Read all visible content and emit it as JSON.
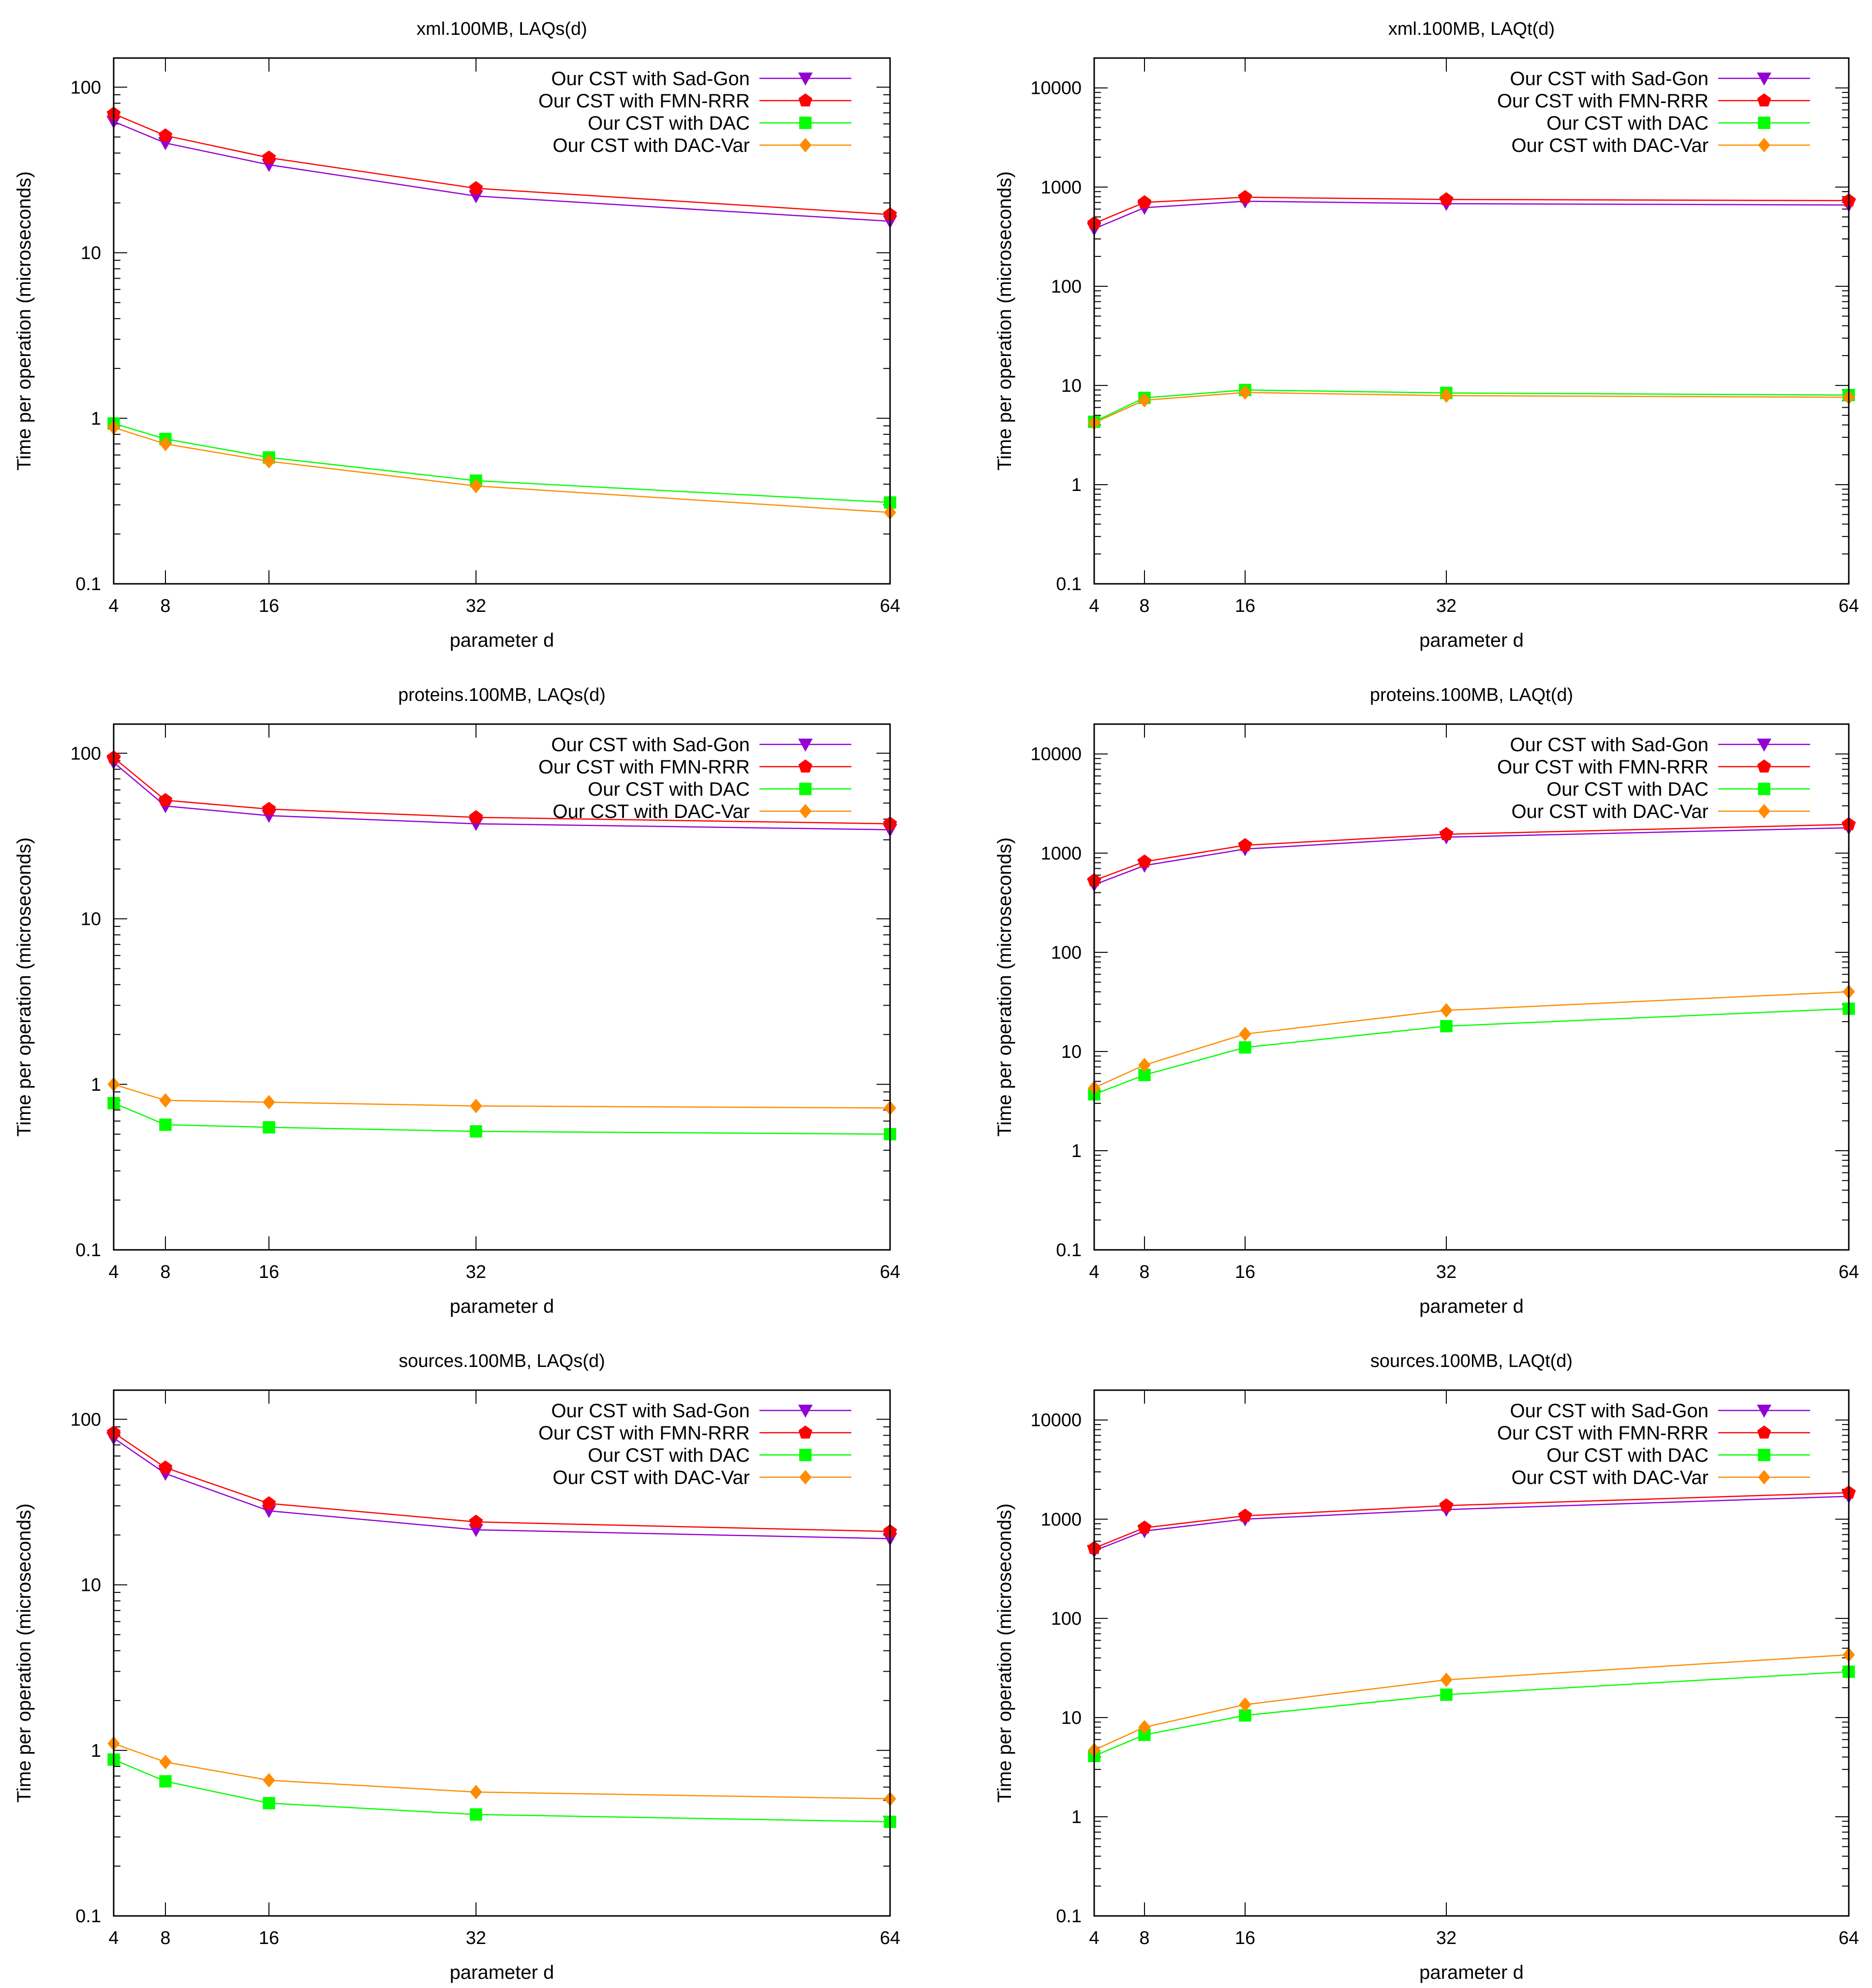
{
  "colors": {
    "sad_gon": "#9400d3",
    "fmn_rrr": "#ff0000",
    "dac": "#00ff00",
    "dac_var": "#ff8c00"
  },
  "chart_data": [
    {
      "type": "line",
      "title": "xml.100MB, LAQs(d)",
      "xlabel": "parameter d",
      "ylabel": "Time per operation (microseconds)",
      "yscale": "log",
      "ylim": [
        0.1,
        150
      ],
      "xlim": [
        4,
        64
      ],
      "xticks": [
        4,
        8,
        16,
        32,
        64
      ],
      "xtick_labels": [
        "4",
        "8",
        "16",
        "32",
        "64"
      ],
      "yticks": [
        0.1,
        1,
        10,
        100
      ],
      "ytick_labels": [
        "0.1",
        "1",
        "10",
        "100"
      ],
      "legend_position": "top-right",
      "x": [
        4,
        8,
        16,
        32,
        64
      ],
      "series": [
        {
          "name": "Our CST with Sad-Gon",
          "color": "#9400d3",
          "marker": "triangle-down",
          "values": [
            62,
            46,
            34,
            22,
            15.5
          ]
        },
        {
          "name": "Our CST with FMN-RRR",
          "color": "#ff0000",
          "marker": "pentagon",
          "values": [
            69,
            51,
            37.5,
            24.5,
            17
          ]
        },
        {
          "name": "Our CST with DAC",
          "color": "#00ff00",
          "marker": "square",
          "values": [
            0.93,
            0.75,
            0.58,
            0.42,
            0.31
          ]
        },
        {
          "name": "Our CST with DAC-Var",
          "color": "#ff8c00",
          "marker": "diamond",
          "values": [
            0.88,
            0.7,
            0.55,
            0.39,
            0.27
          ]
        }
      ]
    },
    {
      "type": "line",
      "title": "xml.100MB, LAQt(d)",
      "xlabel": "parameter d",
      "ylabel": "Time per operation (microseconds)",
      "yscale": "log",
      "ylim": [
        0.1,
        20000
      ],
      "xlim": [
        4,
        64
      ],
      "xticks": [
        4,
        8,
        16,
        32,
        64
      ],
      "xtick_labels": [
        "4",
        "8",
        "16",
        "32",
        "64"
      ],
      "yticks": [
        0.1,
        1,
        10,
        100,
        1000,
        10000
      ],
      "ytick_labels": [
        "0.1",
        "1",
        "10",
        "100",
        "1000",
        "10000"
      ],
      "legend_position": "top-right",
      "x": [
        4,
        8,
        16,
        32,
        64
      ],
      "series": [
        {
          "name": "Our CST with Sad-Gon",
          "color": "#9400d3",
          "marker": "triangle-down",
          "values": [
            380,
            620,
            720,
            680,
            660
          ]
        },
        {
          "name": "Our CST with FMN-RRR",
          "color": "#ff0000",
          "marker": "pentagon",
          "values": [
            430,
            700,
            790,
            750,
            730
          ]
        },
        {
          "name": "Our CST with DAC",
          "color": "#00ff00",
          "marker": "square",
          "values": [
            4.3,
            7.5,
            9.0,
            8.4,
            8.0
          ]
        },
        {
          "name": "Our CST with DAC-Var",
          "color": "#ff8c00",
          "marker": "diamond",
          "values": [
            4.2,
            7.1,
            8.5,
            7.9,
            7.6
          ]
        }
      ]
    },
    {
      "type": "line",
      "title": "proteins.100MB, LAQs(d)",
      "xlabel": "parameter d",
      "ylabel": "Time per operation (microseconds)",
      "yscale": "log",
      "ylim": [
        0.1,
        150
      ],
      "xlim": [
        4,
        64
      ],
      "xticks": [
        4,
        8,
        16,
        32,
        64
      ],
      "xtick_labels": [
        "4",
        "8",
        "16",
        "32",
        "64"
      ],
      "yticks": [
        0.1,
        1,
        10,
        100
      ],
      "ytick_labels": [
        "0.1",
        "1",
        "10",
        "100"
      ],
      "legend_position": "top-right",
      "x": [
        4,
        8,
        16,
        32,
        64
      ],
      "series": [
        {
          "name": "Our CST with Sad-Gon",
          "color": "#9400d3",
          "marker": "triangle-down",
          "values": [
            88,
            48,
            42,
            37.5,
            34.5
          ]
        },
        {
          "name": "Our CST with FMN-RRR",
          "color": "#ff0000",
          "marker": "pentagon",
          "values": [
            94,
            52,
            46,
            41,
            37.5
          ]
        },
        {
          "name": "Our CST with DAC",
          "color": "#00ff00",
          "marker": "square",
          "values": [
            0.77,
            0.57,
            0.55,
            0.52,
            0.5
          ]
        },
        {
          "name": "Our CST with DAC-Var",
          "color": "#ff8c00",
          "marker": "diamond",
          "values": [
            1.0,
            0.8,
            0.78,
            0.74,
            0.72
          ]
        }
      ]
    },
    {
      "type": "line",
      "title": "proteins.100MB, LAQt(d)",
      "xlabel": "parameter d",
      "ylabel": "Time per operation (microseconds)",
      "yscale": "log",
      "ylim": [
        0.1,
        20000
      ],
      "xlim": [
        4,
        64
      ],
      "xticks": [
        4,
        8,
        16,
        32,
        64
      ],
      "xtick_labels": [
        "4",
        "8",
        "16",
        "32",
        "64"
      ],
      "yticks": [
        0.1,
        1,
        10,
        100,
        1000,
        10000
      ],
      "ytick_labels": [
        "0.1",
        "1",
        "10",
        "100",
        "1000",
        "10000"
      ],
      "legend_position": "top-right",
      "x": [
        4,
        8,
        16,
        32,
        64
      ],
      "series": [
        {
          "name": "Our CST with Sad-Gon",
          "color": "#9400d3",
          "marker": "triangle-down",
          "values": [
            480,
            750,
            1100,
            1450,
            1800
          ]
        },
        {
          "name": "Our CST with FMN-RRR",
          "color": "#ff0000",
          "marker": "pentagon",
          "values": [
            530,
            820,
            1200,
            1550,
            1950
          ]
        },
        {
          "name": "Our CST with DAC",
          "color": "#00ff00",
          "marker": "square",
          "values": [
            3.7,
            5.8,
            11,
            18,
            27
          ]
        },
        {
          "name": "Our CST with DAC-Var",
          "color": "#ff8c00",
          "marker": "diamond",
          "values": [
            4.3,
            7.3,
            15,
            26,
            40
          ]
        }
      ]
    },
    {
      "type": "line",
      "title": "sources.100MB, LAQs(d)",
      "xlabel": "parameter d",
      "ylabel": "Time per operation (microseconds)",
      "yscale": "log",
      "ylim": [
        0.1,
        150
      ],
      "xlim": [
        4,
        64
      ],
      "xticks": [
        4,
        8,
        16,
        32,
        64
      ],
      "xtick_labels": [
        "4",
        "8",
        "16",
        "32",
        "64"
      ],
      "yticks": [
        0.1,
        1,
        10,
        100
      ],
      "ytick_labels": [
        "0.1",
        "1",
        "10",
        "100"
      ],
      "legend_position": "top-right",
      "x": [
        4,
        8,
        16,
        32,
        64
      ],
      "series": [
        {
          "name": "Our CST with Sad-Gon",
          "color": "#9400d3",
          "marker": "triangle-down",
          "values": [
            77,
            47,
            28,
            21.5,
            19
          ]
        },
        {
          "name": "Our CST with FMN-RRR",
          "color": "#ff0000",
          "marker": "pentagon",
          "values": [
            83,
            51,
            31,
            24,
            21
          ]
        },
        {
          "name": "Our CST with DAC",
          "color": "#00ff00",
          "marker": "square",
          "values": [
            0.88,
            0.65,
            0.48,
            0.41,
            0.37
          ]
        },
        {
          "name": "Our CST with DAC-Var",
          "color": "#ff8c00",
          "marker": "diamond",
          "values": [
            1.1,
            0.85,
            0.66,
            0.56,
            0.51
          ]
        }
      ]
    },
    {
      "type": "line",
      "title": "sources.100MB, LAQt(d)",
      "xlabel": "parameter d",
      "ylabel": "Time per operation (microseconds)",
      "yscale": "log",
      "ylim": [
        0.1,
        20000
      ],
      "xlim": [
        4,
        64
      ],
      "xticks": [
        4,
        8,
        16,
        32,
        64
      ],
      "xtick_labels": [
        "4",
        "8",
        "16",
        "32",
        "64"
      ],
      "yticks": [
        0.1,
        1,
        10,
        100,
        1000,
        10000
      ],
      "ytick_labels": [
        "0.1",
        "1",
        "10",
        "100",
        "1000",
        "10000"
      ],
      "legend_position": "top-right",
      "x": [
        4,
        8,
        16,
        32,
        64
      ],
      "series": [
        {
          "name": "Our CST with Sad-Gon",
          "color": "#9400d3",
          "marker": "triangle-down",
          "values": [
            480,
            760,
            1000,
            1250,
            1700
          ]
        },
        {
          "name": "Our CST with FMN-RRR",
          "color": "#ff0000",
          "marker": "pentagon",
          "values": [
            510,
            820,
            1080,
            1370,
            1850
          ]
        },
        {
          "name": "Our CST with DAC",
          "color": "#00ff00",
          "marker": "square",
          "values": [
            4.1,
            6.7,
            10.5,
            17,
            29
          ]
        },
        {
          "name": "Our CST with DAC-Var",
          "color": "#ff8c00",
          "marker": "diamond",
          "values": [
            4.7,
            8.0,
            13.5,
            24,
            43
          ]
        }
      ]
    }
  ]
}
